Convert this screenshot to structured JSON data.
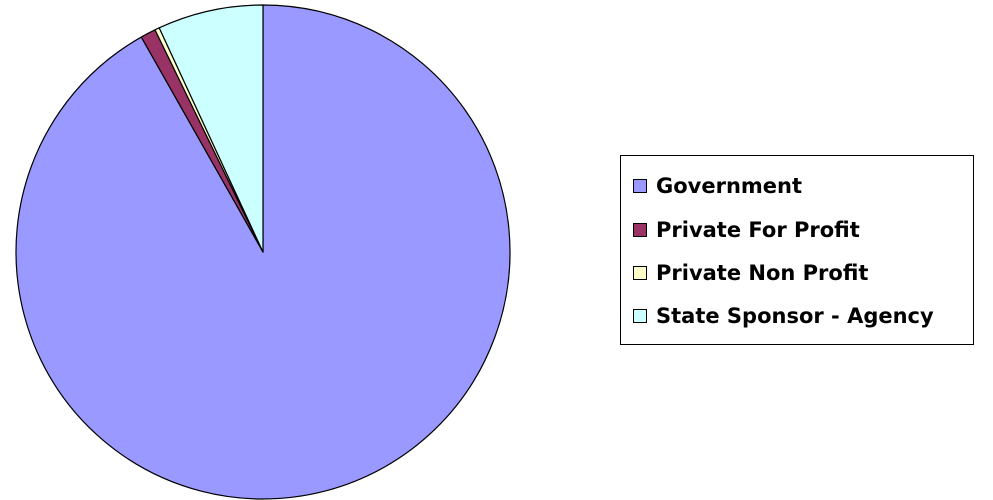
{
  "chart_data": {
    "type": "pie",
    "title": "",
    "legend_position": "right",
    "start_angle": "12 o'clock, clockwise",
    "series": [
      {
        "name": "Government",
        "value": 91.8,
        "color": "#9999FF"
      },
      {
        "name": "Private For Profit",
        "value": 1.0,
        "color": "#993366"
      },
      {
        "name": "Private Non Profit",
        "value": 0.3,
        "color": "#FFFFCC"
      },
      {
        "name": "State Sponsor - Agency",
        "value": 6.9,
        "color": "#CCFFFF"
      }
    ]
  }
}
